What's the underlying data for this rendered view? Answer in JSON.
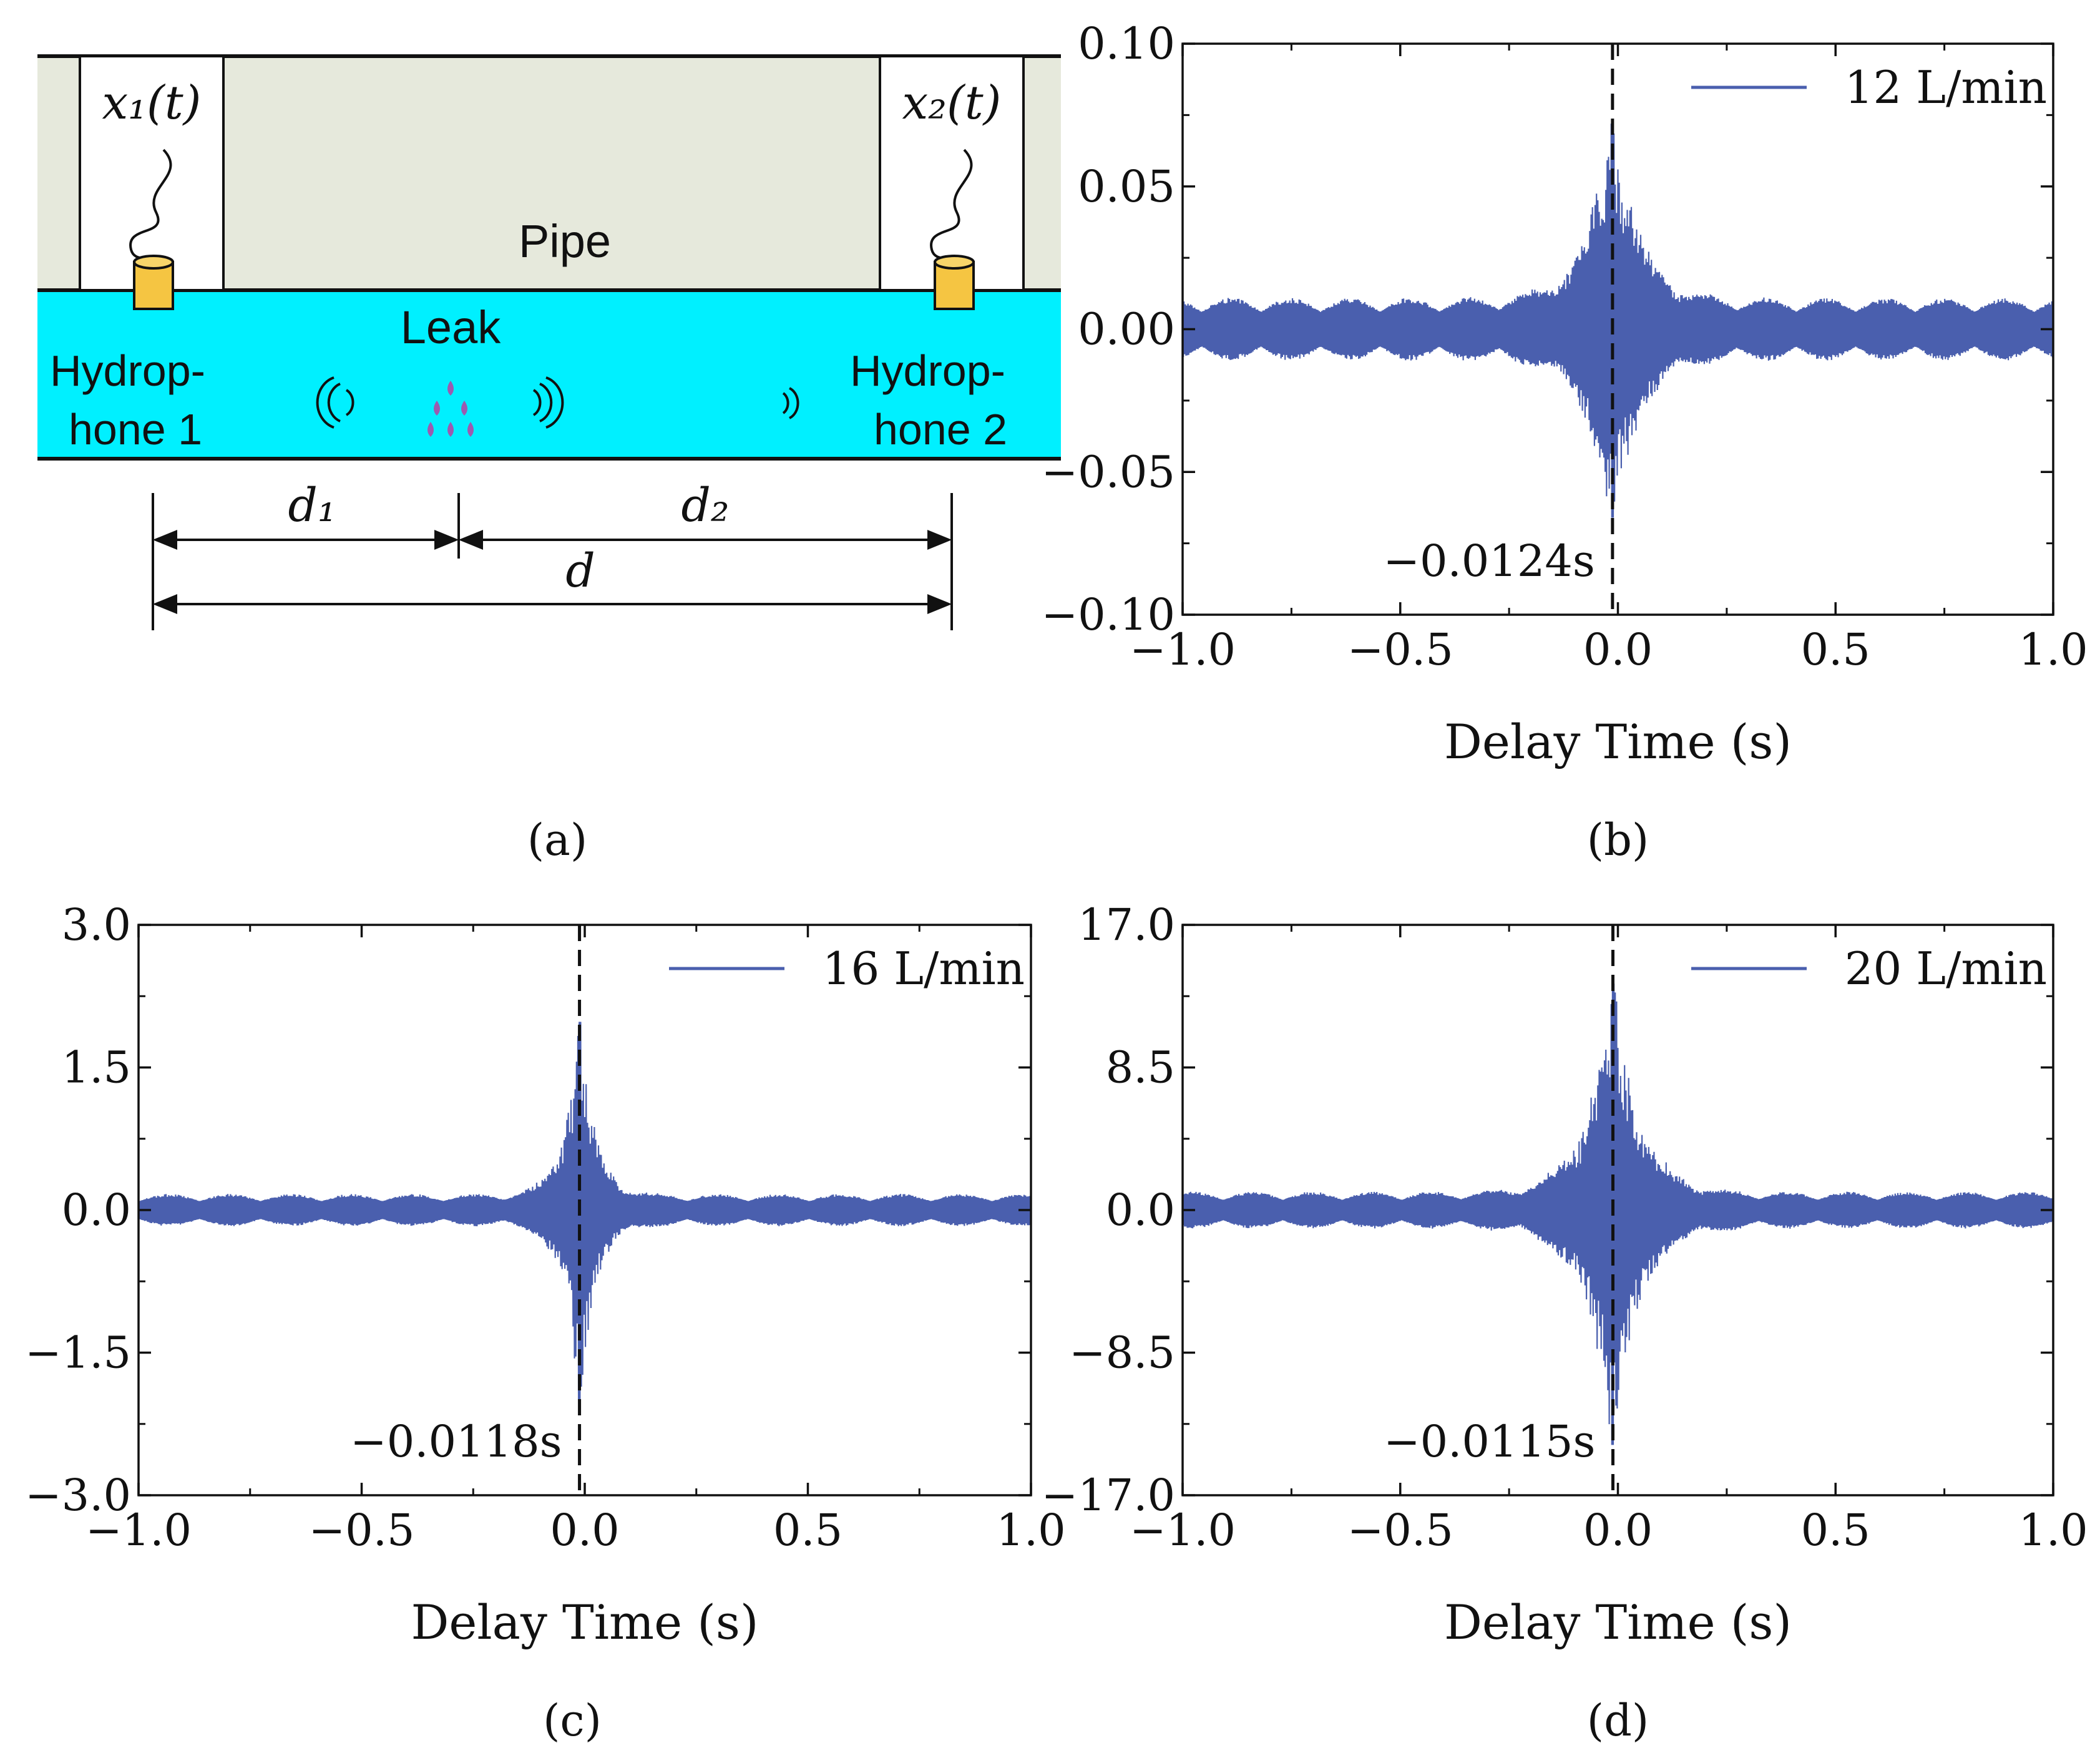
{
  "colors": {
    "signal": "#4a5fae",
    "pipe_wall": "#e6e9dc",
    "water": "#00f0ff",
    "hydrophone": "#f5c542",
    "droplet": "#9b5bb0",
    "axis": "#111111"
  },
  "diagram": {
    "label_x1": "x₁(t)",
    "label_x2": "x₂(t)",
    "pipe_label": "Pipe",
    "leak_label": "Leak",
    "hydrophone1_line1": "Hydrop-",
    "hydrophone1_line2": "hone 1",
    "hydrophone2_line1": "Hydrop-",
    "hydrophone2_line2": "hone 2",
    "d1": "d₁",
    "d2": "d₂",
    "d": "d",
    "caption": "(a)"
  },
  "chart_data": [
    {
      "type": "line",
      "caption": "(b)",
      "legend": "12 L/min",
      "xlabel": "Delay Time (s)",
      "xlim": [
        -1.0,
        1.0
      ],
      "ylim": [
        -0.1,
        0.1
      ],
      "xticks": [
        -1.0,
        -0.5,
        0.0,
        0.5,
        1.0
      ],
      "xtick_labels": [
        "−1.0",
        "−0.5",
        "0.0",
        "0.5",
        "1.0"
      ],
      "yticks": [
        0.1,
        0.05,
        0.0,
        -0.05,
        -0.1
      ],
      "ytick_labels": [
        "0.10",
        "0.05",
        "0.00",
        "−0.05",
        "−0.10"
      ],
      "peak_time": -0.0124,
      "peak_label": "−0.0124s",
      "peak_max": 0.072,
      "peak_min": -0.066,
      "noise_amplitude": 0.011
    },
    {
      "type": "line",
      "caption": "(c)",
      "legend": "16 L/min",
      "xlabel": "Delay Time (s)",
      "xlim": [
        -1.0,
        1.0
      ],
      "ylim": [
        -3.0,
        3.0
      ],
      "xticks": [
        -1.0,
        -0.5,
        0.0,
        0.5,
        1.0
      ],
      "xtick_labels": [
        "−1.0",
        "−0.5",
        "0.0",
        "0.5",
        "1.0"
      ],
      "yticks": [
        3.0,
        1.5,
        0.0,
        -1.5,
        -3.0
      ],
      "ytick_labels": [
        "3.0",
        "1.5",
        "0.0",
        "−1.5",
        "−3.0"
      ],
      "peak_time": -0.0118,
      "peak_label": "−0.0118s",
      "peak_max": 1.98,
      "peak_min": -2.0,
      "noise_amplitude": 0.17
    },
    {
      "type": "line",
      "caption": "(d)",
      "legend": "20 L/min",
      "xlabel": "Delay Time (s)",
      "xlim": [
        -1.0,
        1.0
      ],
      "ylim": [
        -17.0,
        17.0
      ],
      "xticks": [
        -1.0,
        -0.5,
        0.0,
        0.5,
        1.0
      ],
      "xtick_labels": [
        "−1.0",
        "−0.5",
        "0.0",
        "0.5",
        "1.0"
      ],
      "yticks": [
        17.0,
        8.5,
        0.0,
        -8.5,
        -17.0
      ],
      "ytick_labels": [
        "17.0",
        "8.5",
        "0.0",
        "−8.5",
        "−17.0"
      ],
      "peak_time": -0.0115,
      "peak_label": "−0.0115s",
      "peak_max": 13.5,
      "peak_min": -14.0,
      "noise_amplitude": 1.1
    }
  ]
}
